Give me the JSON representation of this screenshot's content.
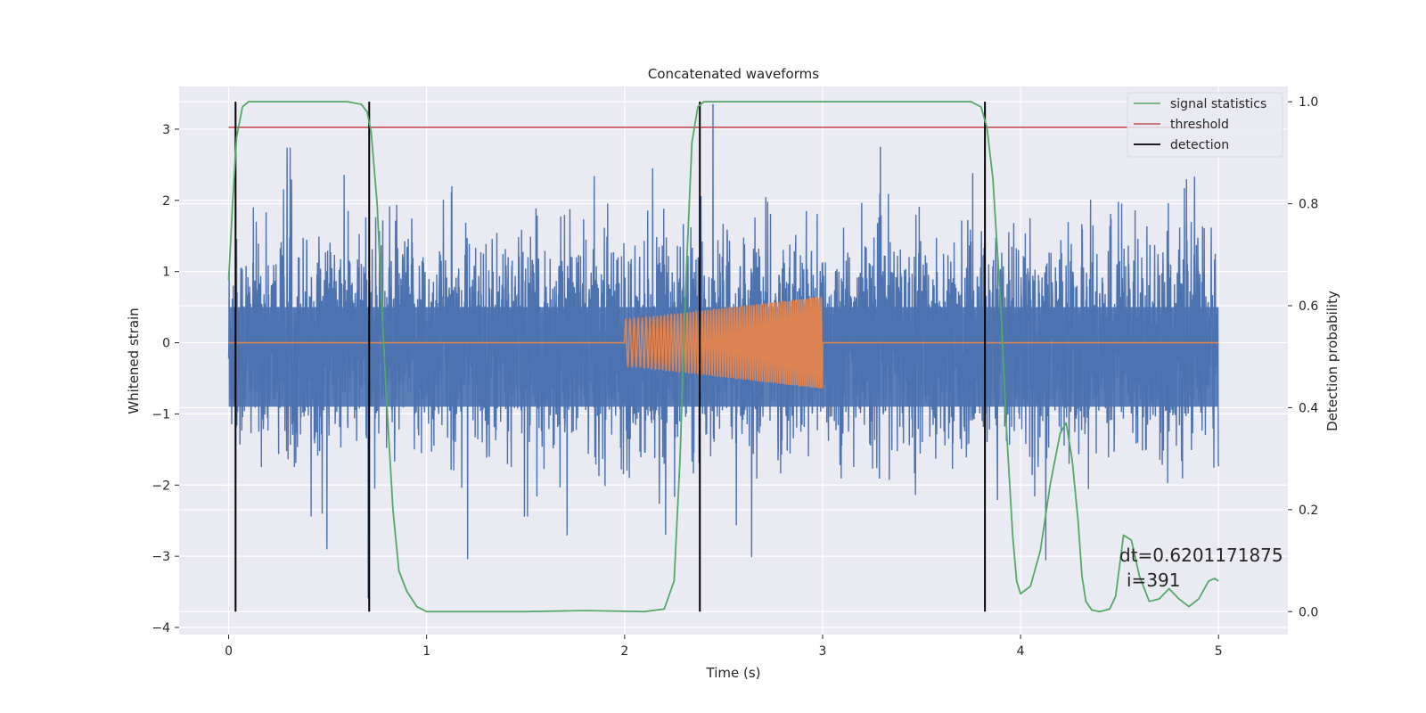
{
  "chart_data": {
    "type": "line",
    "title": "Concatenated waveforms",
    "xlabel": "Time (s)",
    "ylabel": "Whitened strain",
    "ylabel_right": "Detection probability",
    "xlim": [
      -0.25,
      5.35
    ],
    "ylim": [
      -4.1,
      3.6
    ],
    "ylim_right": [
      -0.045,
      1.03
    ],
    "x_ticks": [
      0,
      1,
      2,
      3,
      4,
      5
    ],
    "y_ticks": [
      -4,
      -3,
      -2,
      -1,
      0,
      1,
      2,
      3
    ],
    "y_ticks_right": [
      0.0,
      0.2,
      0.4,
      0.6,
      0.8,
      1.0
    ],
    "x_tick_labels": [
      "0",
      "1",
      "2",
      "3",
      "4",
      "5"
    ],
    "y_tick_labels": [
      "−4",
      "−3",
      "−2",
      "−1",
      "0",
      "1",
      "2",
      "3"
    ],
    "y_tick_labels_right": [
      "0.0",
      "0.2",
      "0.4",
      "0.6",
      "0.8",
      "1.0"
    ],
    "grid": true,
    "legend_position": "top-right",
    "colors": {
      "background": "#EAEAF2",
      "grid": "#FFFFFF",
      "strain": "#4C72B0",
      "injection": "#DD8452",
      "signal_statistics": "#55A868",
      "threshold": "#C44E52",
      "detection": "#000000"
    },
    "series": [
      {
        "name": "",
        "description_role": "whitened strain noise",
        "x_range": [
          0,
          5
        ],
        "typical_amplitude": 1.0,
        "peak_values": [
          3.35,
          3.2,
          3.3,
          -3.75,
          -3.7,
          -3.35,
          -3.1
        ]
      },
      {
        "name": "",
        "description_role": "injected chirp waveform",
        "x": [
          0,
          2.0,
          2.0,
          2.5,
          3.0,
          3.0,
          5.0
        ],
        "envelope": [
          0,
          0.3,
          0.35,
          0.45,
          0.65,
          0,
          0
        ]
      },
      {
        "name": "signal statistics",
        "axis": "right",
        "x": [
          0,
          0.02,
          0.04,
          0.07,
          0.1,
          0.15,
          0.3,
          0.6,
          0.67,
          0.7,
          0.72,
          0.75,
          0.78,
          0.8,
          0.83,
          0.86,
          0.9,
          0.95,
          1.0,
          1.5,
          1.8,
          2.1,
          2.2,
          2.25,
          2.28,
          2.31,
          2.34,
          2.37,
          2.4,
          2.45,
          2.5,
          3.0,
          3.5,
          3.75,
          3.8,
          3.83,
          3.86,
          3.9,
          3.93,
          3.96,
          3.98,
          4.0,
          4.05,
          4.1,
          4.15,
          4.2,
          4.23,
          4.26,
          4.29,
          4.31,
          4.33,
          4.36,
          4.4,
          4.45,
          4.48,
          4.52,
          4.56,
          4.6,
          4.65,
          4.7,
          4.75,
          4.8,
          4.85,
          4.9,
          4.95,
          4.98,
          5.0
        ],
        "y": [
          0.65,
          0.8,
          0.93,
          0.99,
          1.0,
          1.0,
          1.0,
          1.0,
          0.995,
          0.98,
          0.94,
          0.8,
          0.55,
          0.4,
          0.2,
          0.08,
          0.04,
          0.01,
          0.0,
          0.0,
          0.002,
          0.0,
          0.005,
          0.06,
          0.3,
          0.65,
          0.92,
          0.99,
          1.0,
          1.0,
          1.0,
          1.0,
          1.0,
          1.0,
          0.99,
          0.95,
          0.85,
          0.6,
          0.35,
          0.15,
          0.06,
          0.035,
          0.05,
          0.12,
          0.25,
          0.35,
          0.37,
          0.3,
          0.18,
          0.07,
          0.02,
          0.003,
          0.0,
          0.005,
          0.03,
          0.15,
          0.14,
          0.07,
          0.02,
          0.025,
          0.045,
          0.025,
          0.01,
          0.025,
          0.06,
          0.065,
          0.06
        ]
      },
      {
        "name": "threshold",
        "axis": "right",
        "x": [
          0,
          5
        ],
        "y": [
          0.95,
          0.95
        ]
      }
    ],
    "detections": {
      "name": "detection",
      "x": [
        0.035,
        0.71,
        2.38,
        3.82
      ],
      "y_range_right": [
        0.0,
        1.0
      ]
    },
    "legend": [
      "signal statistics",
      "threshold",
      "detection"
    ],
    "annotation": {
      "line1": "dt=0.6201171875",
      "line2": "i=391"
    }
  }
}
